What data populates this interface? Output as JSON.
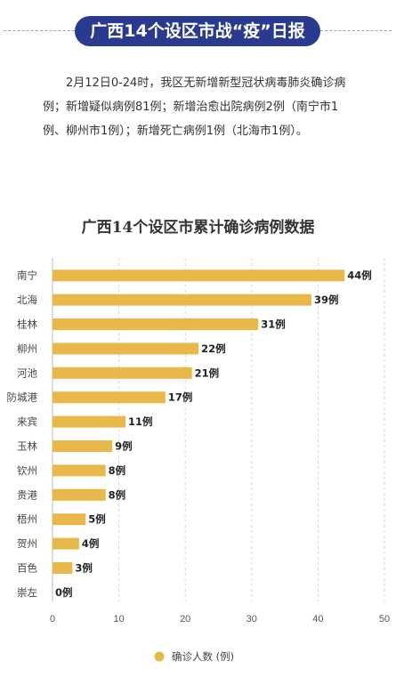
{
  "header": {
    "title": "广西14个设区市战“疫”日报"
  },
  "intro": {
    "text": "2月12日0-24时，我区无新增新型冠状病毒肺炎确诊病例；新增疑似病例81例；新增治愈出院病例2例（南宁市1例、柳州市1例）；新增死亡病例1例（北海市1例）。"
  },
  "chart_data": {
    "type": "bar",
    "orientation": "horizontal",
    "title": "广西14个设区市累计确诊病例数据",
    "categories": [
      "南宁",
      "北海",
      "桂林",
      "柳州",
      "河池",
      "防城港",
      "来宾",
      "玉林",
      "钦州",
      "贵港",
      "梧州",
      "贺州",
      "百色",
      "崇左"
    ],
    "series": [
      {
        "name": "确诊人数 (例)",
        "values": [
          44,
          39,
          31,
          22,
          21,
          17,
          11,
          9,
          8,
          8,
          5,
          4,
          3,
          0
        ],
        "labels": [
          "44例",
          "39例",
          "31例",
          "22例",
          "21例",
          "17例",
          "11例",
          "9例",
          "8例",
          "8例",
          "5例",
          "4例",
          "3例",
          "0例"
        ]
      }
    ],
    "xlim": [
      0,
      50
    ],
    "xticks": [
      "0",
      "10",
      "20",
      "30",
      "40",
      "50"
    ],
    "grid": true,
    "legend_position": "bottom",
    "bar_color": "#e9b84a"
  }
}
